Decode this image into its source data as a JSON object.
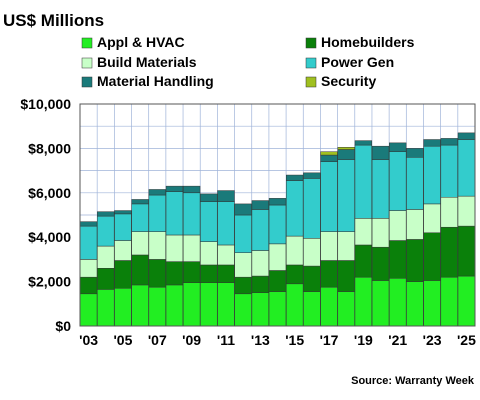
{
  "chart_data": {
    "type": "bar",
    "stacked": true,
    "title": "US$ Millions",
    "source": "Source: Warranty Week",
    "categories": [
      "'03",
      "'04",
      "'05",
      "'06",
      "'07",
      "'08",
      "'09",
      "'10",
      "'11",
      "'12",
      "'13",
      "'14",
      "'15",
      "'16",
      "'17",
      "'18",
      "'19",
      "'20",
      "'21",
      "'22",
      "'23",
      "'24",
      "'25"
    ],
    "xtick_labels": [
      {
        "index": 0,
        "label": "'03"
      },
      {
        "index": 2,
        "label": "'05"
      },
      {
        "index": 4,
        "label": "'07"
      },
      {
        "index": 6,
        "label": "'09"
      },
      {
        "index": 8,
        "label": "'11"
      },
      {
        "index": 10,
        "label": "'13"
      },
      {
        "index": 12,
        "label": "'15"
      },
      {
        "index": 14,
        "label": "'17"
      },
      {
        "index": 16,
        "label": "'19"
      },
      {
        "index": 18,
        "label": "'21"
      },
      {
        "index": 20,
        "label": "'23"
      },
      {
        "index": 22,
        "label": "'25"
      }
    ],
    "yticks": [
      0,
      2000,
      4000,
      6000,
      8000,
      10000
    ],
    "ytick_labels": [
      "$0",
      "$2,000",
      "$4,000",
      "$6,000",
      "$8,000",
      "$10,000"
    ],
    "ylim": [
      0,
      10000
    ],
    "grid": true,
    "legend_position": "top",
    "series": [
      {
        "name": "Appl & HVAC",
        "color": "#22ee22",
        "values": [
          1450,
          1650,
          1700,
          1850,
          1750,
          1850,
          1950,
          1950,
          1950,
          1450,
          1500,
          1550,
          1900,
          1550,
          1750,
          1550,
          2200,
          2050,
          2150,
          2000,
          2050,
          2200,
          2250
        ]
      },
      {
        "name": "Homebuilders",
        "color": "#0a800a",
        "values": [
          750,
          950,
          1250,
          1350,
          1250,
          1050,
          950,
          800,
          800,
          750,
          750,
          950,
          850,
          1150,
          1200,
          1400,
          1450,
          1500,
          1700,
          1900,
          2150,
          2250,
          2250
        ]
      },
      {
        "name": "Build Materials",
        "color": "#c8ffc8",
        "values": [
          800,
          1000,
          900,
          1050,
          1250,
          1200,
          1200,
          1050,
          900,
          1100,
          1150,
          1200,
          1300,
          1250,
          1300,
          1300,
          1200,
          1300,
          1350,
          1350,
          1300,
          1350,
          1350
        ]
      },
      {
        "name": "Power Gen",
        "color": "#33cccc",
        "values": [
          1500,
          1350,
          1200,
          1250,
          1650,
          1950,
          1900,
          1800,
          1950,
          1700,
          1850,
          1750,
          2500,
          2700,
          3150,
          3250,
          3300,
          2650,
          2650,
          2350,
          2600,
          2350,
          2550
        ]
      },
      {
        "name": "Material Handling",
        "color": "#1a7a7a",
        "values": [
          200,
          200,
          150,
          200,
          250,
          250,
          300,
          350,
          500,
          500,
          400,
          300,
          250,
          250,
          300,
          450,
          200,
          600,
          400,
          400,
          300,
          300,
          300
        ]
      },
      {
        "name": "Security",
        "color": "#a0c020",
        "values": [
          0,
          0,
          0,
          0,
          0,
          0,
          0,
          0,
          0,
          0,
          0,
          0,
          0,
          0,
          150,
          100,
          0,
          0,
          0,
          0,
          0,
          0,
          0
        ]
      }
    ]
  }
}
